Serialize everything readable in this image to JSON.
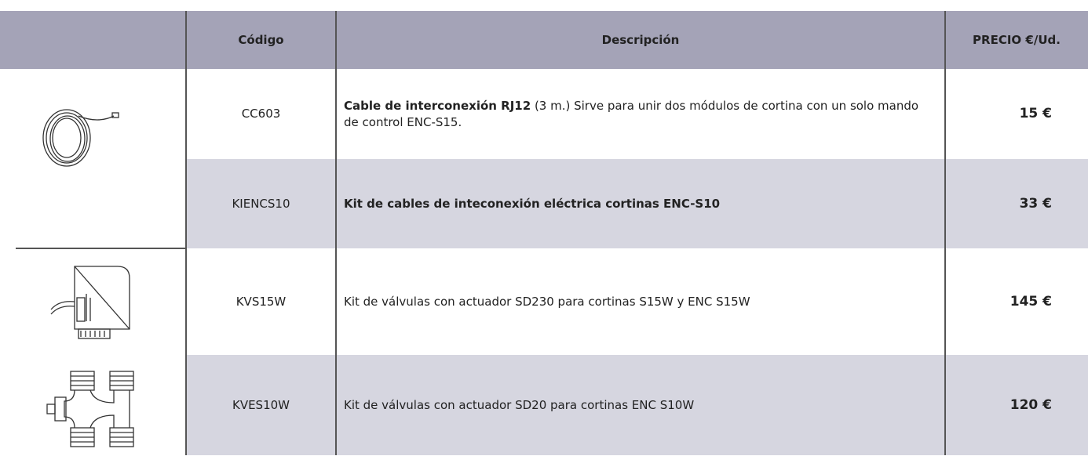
{
  "header": {
    "columns": [
      "Código",
      "Descripción",
      "PRECIO €/Ud."
    ]
  },
  "rows": [
    {
      "code": "CC603",
      "description": {
        "bold": "Cable de interconexión RJ12",
        "text": " (3 m.) Sirve para unir dos módulos de cortina con un solo mando de control ENC-S15."
      },
      "price": "15 €"
    },
    {
      "code": "KIENCS10",
      "description": {
        "bold": "Kit de cables de inteconexión eléctrica cortinas ENC-S10"
      },
      "price": "33 €"
    },
    {
      "code": "KVS15W",
      "description": {
        "text": "Kit de válvulas con actuador SD230 para cortinas S15W y ENC S15W"
      },
      "price": "145 €"
    },
    {
      "code": "KVES10W",
      "description": {
        "text": "Kit de válvulas con actuador SD20 para cortinas ENC S10W"
      },
      "price": "120 €"
    }
  ]
}
